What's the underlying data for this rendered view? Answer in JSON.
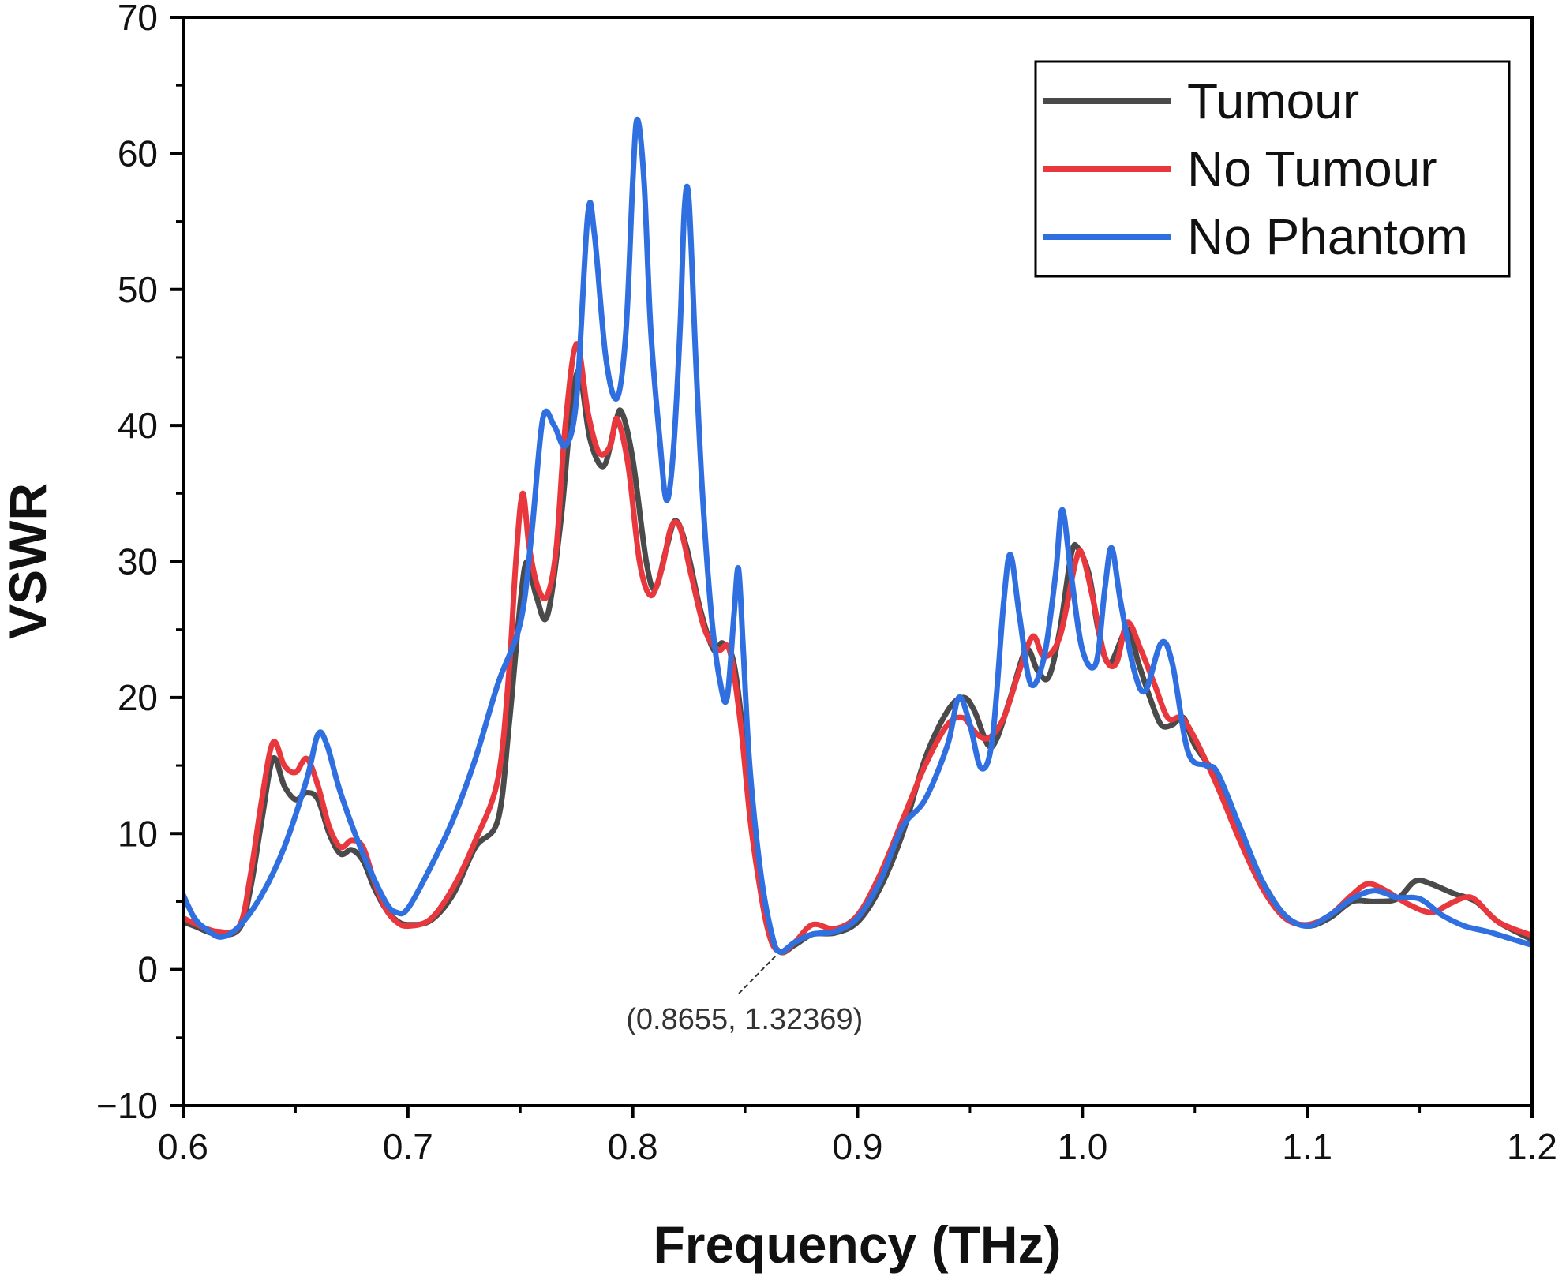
{
  "chart_data": {
    "type": "line",
    "title": "",
    "xlabel": "Frequency (THz)",
    "ylabel": "VSWR",
    "xlim": [
      0.6,
      1.2
    ],
    "ylim": [
      -10,
      70
    ],
    "x_ticks": [
      0.6,
      0.7,
      0.8,
      0.9,
      1.0,
      1.1,
      1.2
    ],
    "x_tick_labels": [
      "0.6",
      "0.7",
      "0.8",
      "0.9",
      "1.0",
      "1.1",
      "1.2"
    ],
    "y_ticks": [
      -10,
      0,
      10,
      20,
      30,
      40,
      50,
      60,
      70
    ],
    "y_tick_labels": [
      "−10",
      "0",
      "10",
      "20",
      "30",
      "40",
      "50",
      "60",
      "70"
    ],
    "grid": false,
    "legend_position": "top-right",
    "series": [
      {
        "name": "Tumour",
        "color": "#4a4a4a",
        "points": [
          [
            0.6,
            3.5
          ],
          [
            0.605,
            3.2
          ],
          [
            0.615,
            2.6
          ],
          [
            0.625,
            3.0
          ],
          [
            0.63,
            6.0
          ],
          [
            0.635,
            11.0
          ],
          [
            0.64,
            15.5
          ],
          [
            0.645,
            13.5
          ],
          [
            0.65,
            12.5
          ],
          [
            0.655,
            13.0
          ],
          [
            0.66,
            12.5
          ],
          [
            0.665,
            10.0
          ],
          [
            0.67,
            8.5
          ],
          [
            0.675,
            8.8
          ],
          [
            0.68,
            8.0
          ],
          [
            0.685,
            6.0
          ],
          [
            0.69,
            4.5
          ],
          [
            0.695,
            3.6
          ],
          [
            0.7,
            3.3
          ],
          [
            0.71,
            3.6
          ],
          [
            0.72,
            5.5
          ],
          [
            0.73,
            9.0
          ],
          [
            0.74,
            11.0
          ],
          [
            0.745,
            18.0
          ],
          [
            0.75,
            27.0
          ],
          [
            0.753,
            30.0
          ],
          [
            0.757,
            27.5
          ],
          [
            0.762,
            26.0
          ],
          [
            0.768,
            33.0
          ],
          [
            0.772,
            40.0
          ],
          [
            0.776,
            44.0
          ],
          [
            0.781,
            39.0
          ],
          [
            0.787,
            37.0
          ],
          [
            0.792,
            40.0
          ],
          [
            0.795,
            41.0
          ],
          [
            0.8,
            37.5
          ],
          [
            0.806,
            30.0
          ],
          [
            0.81,
            28.0
          ],
          [
            0.815,
            31.0
          ],
          [
            0.819,
            33.0
          ],
          [
            0.824,
            31.0
          ],
          [
            0.83,
            26.5
          ],
          [
            0.836,
            23.5
          ],
          [
            0.84,
            24.0
          ],
          [
            0.845,
            22.5
          ],
          [
            0.85,
            16.0
          ],
          [
            0.855,
            8.0
          ],
          [
            0.86,
            3.0
          ],
          [
            0.8655,
            1.3
          ],
          [
            0.872,
            1.8
          ],
          [
            0.88,
            2.6
          ],
          [
            0.89,
            2.7
          ],
          [
            0.9,
            3.5
          ],
          [
            0.91,
            6.0
          ],
          [
            0.92,
            10.0
          ],
          [
            0.93,
            15.5
          ],
          [
            0.94,
            19.0
          ],
          [
            0.947,
            20.0
          ],
          [
            0.952,
            19.0
          ],
          [
            0.958,
            16.5
          ],
          [
            0.962,
            17.0
          ],
          [
            0.968,
            20.0
          ],
          [
            0.975,
            23.5
          ],
          [
            0.98,
            22.0
          ],
          [
            0.985,
            21.5
          ],
          [
            0.99,
            25.0
          ],
          [
            0.995,
            30.5
          ],
          [
            0.998,
            31.0
          ],
          [
            1.003,
            29.0
          ],
          [
            1.007,
            25.0
          ],
          [
            1.012,
            22.5
          ],
          [
            1.02,
            25.0
          ],
          [
            1.025,
            22.5
          ],
          [
            1.03,
            20.0
          ],
          [
            1.035,
            18.0
          ],
          [
            1.04,
            18.0
          ],
          [
            1.045,
            18.5
          ],
          [
            1.05,
            16.5
          ],
          [
            1.06,
            14.0
          ],
          [
            1.07,
            10.0
          ],
          [
            1.08,
            6.5
          ],
          [
            1.09,
            4.0
          ],
          [
            1.1,
            3.2
          ],
          [
            1.11,
            3.8
          ],
          [
            1.12,
            5.0
          ],
          [
            1.13,
            5.0
          ],
          [
            1.14,
            5.2
          ],
          [
            1.148,
            6.5
          ],
          [
            1.155,
            6.3
          ],
          [
            1.165,
            5.6
          ],
          [
            1.175,
            5.0
          ],
          [
            1.185,
            3.5
          ],
          [
            1.2,
            2.2
          ]
        ]
      },
      {
        "name": "No Tumour",
        "color": "#e8383d",
        "points": [
          [
            0.6,
            3.8
          ],
          [
            0.605,
            3.4
          ],
          [
            0.615,
            2.8
          ],
          [
            0.625,
            3.2
          ],
          [
            0.63,
            7.0
          ],
          [
            0.635,
            12.5
          ],
          [
            0.64,
            16.7
          ],
          [
            0.645,
            15.0
          ],
          [
            0.65,
            14.5
          ],
          [
            0.655,
            15.5
          ],
          [
            0.66,
            13.5
          ],
          [
            0.665,
            10.5
          ],
          [
            0.67,
            9.0
          ],
          [
            0.675,
            9.5
          ],
          [
            0.68,
            9.0
          ],
          [
            0.685,
            6.5
          ],
          [
            0.69,
            4.5
          ],
          [
            0.695,
            3.5
          ],
          [
            0.7,
            3.2
          ],
          [
            0.71,
            3.7
          ],
          [
            0.72,
            6.0
          ],
          [
            0.73,
            9.5
          ],
          [
            0.74,
            14.0
          ],
          [
            0.745,
            22.0
          ],
          [
            0.748,
            30.0
          ],
          [
            0.751,
            35.0
          ],
          [
            0.754,
            31.0
          ],
          [
            0.758,
            28.0
          ],
          [
            0.762,
            27.5
          ],
          [
            0.766,
            31.0
          ],
          [
            0.77,
            40.0
          ],
          [
            0.775,
            46.0
          ],
          [
            0.78,
            41.0
          ],
          [
            0.785,
            38.0
          ],
          [
            0.79,
            38.5
          ],
          [
            0.793,
            40.5
          ],
          [
            0.798,
            37.0
          ],
          [
            0.803,
            30.0
          ],
          [
            0.808,
            27.5
          ],
          [
            0.813,
            29.5
          ],
          [
            0.817,
            32.5
          ],
          [
            0.821,
            32.5
          ],
          [
            0.826,
            29.0
          ],
          [
            0.832,
            25.0
          ],
          [
            0.838,
            23.5
          ],
          [
            0.843,
            23.5
          ],
          [
            0.848,
            18.0
          ],
          [
            0.853,
            10.0
          ],
          [
            0.86,
            3.0
          ],
          [
            0.8655,
            1.3
          ],
          [
            0.872,
            2.0
          ],
          [
            0.88,
            3.3
          ],
          [
            0.89,
            3.0
          ],
          [
            0.9,
            4.0
          ],
          [
            0.91,
            7.0
          ],
          [
            0.92,
            11.0
          ],
          [
            0.93,
            15.0
          ],
          [
            0.94,
            18.0
          ],
          [
            0.947,
            18.5
          ],
          [
            0.952,
            17.5
          ],
          [
            0.958,
            17.0
          ],
          [
            0.965,
            18.5
          ],
          [
            0.972,
            22.0
          ],
          [
            0.978,
            24.5
          ],
          [
            0.983,
            23.0
          ],
          [
            0.99,
            24.5
          ],
          [
            0.997,
            30.0
          ],
          [
            1.0,
            30.5
          ],
          [
            1.005,
            27.0
          ],
          [
            1.01,
            23.0
          ],
          [
            1.015,
            22.5
          ],
          [
            1.02,
            25.5
          ],
          [
            1.026,
            23.5
          ],
          [
            1.032,
            21.0
          ],
          [
            1.038,
            18.5
          ],
          [
            1.044,
            18.5
          ],
          [
            1.05,
            17.0
          ],
          [
            1.06,
            13.5
          ],
          [
            1.07,
            9.5
          ],
          [
            1.08,
            6.0
          ],
          [
            1.09,
            3.8
          ],
          [
            1.1,
            3.3
          ],
          [
            1.11,
            4.0
          ],
          [
            1.12,
            5.5
          ],
          [
            1.127,
            6.3
          ],
          [
            1.135,
            5.8
          ],
          [
            1.145,
            4.8
          ],
          [
            1.155,
            4.2
          ],
          [
            1.163,
            4.8
          ],
          [
            1.17,
            5.3
          ],
          [
            1.175,
            5.1
          ],
          [
            1.185,
            3.5
          ],
          [
            1.2,
            2.5
          ]
        ]
      },
      {
        "name": "No Phantom",
        "color": "#2f6fe0",
        "points": [
          [
            0.6,
            5.5
          ],
          [
            0.605,
            3.8
          ],
          [
            0.61,
            3.0
          ],
          [
            0.617,
            2.4
          ],
          [
            0.625,
            3.2
          ],
          [
            0.635,
            5.5
          ],
          [
            0.645,
            9.0
          ],
          [
            0.655,
            14.0
          ],
          [
            0.66,
            17.3
          ],
          [
            0.664,
            16.5
          ],
          [
            0.67,
            13.0
          ],
          [
            0.68,
            8.5
          ],
          [
            0.69,
            5.0
          ],
          [
            0.695,
            4.2
          ],
          [
            0.7,
            4.5
          ],
          [
            0.71,
            7.5
          ],
          [
            0.72,
            11.0
          ],
          [
            0.73,
            15.5
          ],
          [
            0.74,
            21.0
          ],
          [
            0.75,
            25.5
          ],
          [
            0.755,
            32.0
          ],
          [
            0.76,
            40.5
          ],
          [
            0.765,
            40.0
          ],
          [
            0.77,
            38.5
          ],
          [
            0.775,
            42.0
          ],
          [
            0.78,
            55.5
          ],
          [
            0.783,
            54.0
          ],
          [
            0.788,
            45.0
          ],
          [
            0.793,
            42.0
          ],
          [
            0.797,
            47.0
          ],
          [
            0.8,
            58.0
          ],
          [
            0.802,
            62.5
          ],
          [
            0.805,
            58.0
          ],
          [
            0.808,
            47.0
          ],
          [
            0.812,
            39.0
          ],
          [
            0.815,
            34.5
          ],
          [
            0.818,
            38.0
          ],
          [
            0.821,
            47.0
          ],
          [
            0.823,
            56.0
          ],
          [
            0.825,
            56.5
          ],
          [
            0.828,
            45.0
          ],
          [
            0.831,
            35.0
          ],
          [
            0.835,
            26.0
          ],
          [
            0.839,
            21.0
          ],
          [
            0.842,
            20.0
          ],
          [
            0.845,
            26.0
          ],
          [
            0.847,
            29.5
          ],
          [
            0.849,
            24.0
          ],
          [
            0.852,
            15.0
          ],
          [
            0.857,
            7.0
          ],
          [
            0.862,
            2.5
          ],
          [
            0.8655,
            1.3
          ],
          [
            0.872,
            2.0
          ],
          [
            0.88,
            2.6
          ],
          [
            0.89,
            2.8
          ],
          [
            0.9,
            3.8
          ],
          [
            0.91,
            6.5
          ],
          [
            0.92,
            10.5
          ],
          [
            0.93,
            12.5
          ],
          [
            0.94,
            16.5
          ],
          [
            0.945,
            20.0
          ],
          [
            0.95,
            18.0
          ],
          [
            0.955,
            14.8
          ],
          [
            0.96,
            17.0
          ],
          [
            0.965,
            27.0
          ],
          [
            0.968,
            30.5
          ],
          [
            0.972,
            26.0
          ],
          [
            0.977,
            21.0
          ],
          [
            0.983,
            23.0
          ],
          [
            0.988,
            29.0
          ],
          [
            0.991,
            33.8
          ],
          [
            0.995,
            29.0
          ],
          [
            1.0,
            23.5
          ],
          [
            1.006,
            22.5
          ],
          [
            1.01,
            28.0
          ],
          [
            1.013,
            31.0
          ],
          [
            1.017,
            27.0
          ],
          [
            1.023,
            22.0
          ],
          [
            1.028,
            20.5
          ],
          [
            1.035,
            24.0
          ],
          [
            1.04,
            22.5
          ],
          [
            1.047,
            16.0
          ],
          [
            1.055,
            15.0
          ],
          [
            1.06,
            14.5
          ],
          [
            1.07,
            10.5
          ],
          [
            1.08,
            6.5
          ],
          [
            1.09,
            4.0
          ],
          [
            1.1,
            3.2
          ],
          [
            1.11,
            4.0
          ],
          [
            1.12,
            5.2
          ],
          [
            1.13,
            5.8
          ],
          [
            1.14,
            5.3
          ],
          [
            1.15,
            5.2
          ],
          [
            1.16,
            4.0
          ],
          [
            1.17,
            3.2
          ],
          [
            1.18,
            2.8
          ],
          [
            1.19,
            2.3
          ],
          [
            1.2,
            1.8
          ]
        ]
      }
    ],
    "annotations": [
      {
        "text": "(0.8655, 1.32369)",
        "x": 0.8655,
        "y": 1.32369
      }
    ]
  }
}
